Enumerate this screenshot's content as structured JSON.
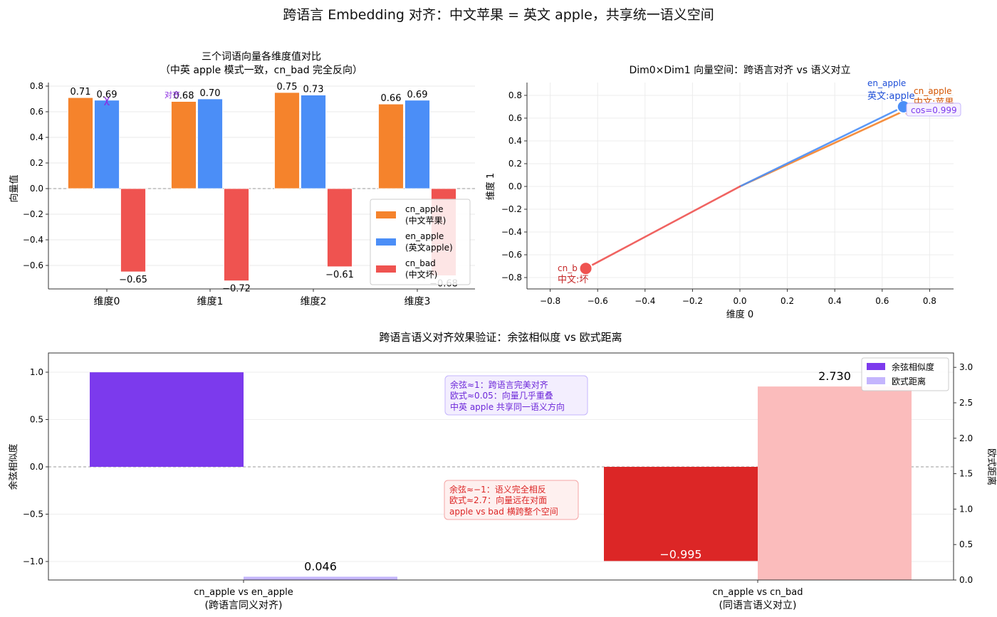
{
  "title": "跨语言 Embedding 对齐：中文苹果 = 英文 apple，共享统一语义空间",
  "colors": {
    "cn_apple": "#f5832c",
    "en_apple": "#4b8ef7",
    "cn_bad": "#ef5350",
    "cosine": "#7c3aed",
    "euclid": "#c4b5fd",
    "cos_bad": "#dc2626",
    "euclid_bad": "#fbbcbc"
  },
  "chart_data": [
    {
      "type": "bar",
      "title_line1": "三个词语向量各维度值对比",
      "title_line2": "（中英 apple 模式一致，cn_bad 完全反向）",
      "ylabel": "向量值",
      "ylim": [
        -0.8,
        0.82
      ],
      "yticks": [
        "0.8",
        "0.6",
        "0.4",
        "0.2",
        "0.0",
        "−0.2",
        "−0.4",
        "−0.6"
      ],
      "categories": [
        "维度0",
        "维度1",
        "维度2",
        "维度3"
      ],
      "series": [
        {
          "name": "cn_apple",
          "legend_line1": "cn_apple",
          "legend_line2": "(中文苹果)",
          "values": [
            0.71,
            0.68,
            0.75,
            0.66
          ],
          "labels": [
            "0.71",
            "0.68",
            "0.75",
            "0.66"
          ]
        },
        {
          "name": "en_apple",
          "legend_line1": "en_apple",
          "legend_line2": "(英文apple)",
          "values": [
            0.69,
            0.7,
            0.73,
            0.69
          ],
          "labels": [
            "0.69",
            "0.70",
            "0.73",
            "0.69"
          ]
        },
        {
          "name": "cn_bad",
          "legend_line1": "cn_bad",
          "legend_line2": "(中文坏)",
          "values": [
            -0.65,
            -0.72,
            -0.61,
            -0.68
          ],
          "labels": [
            "−0.65",
            "−0.72",
            "−0.61",
            "−0.68"
          ]
        }
      ],
      "annotations": {
        "cross_mark": "χ",
        "align_text": "对齐"
      },
      "legend_position": "lower-right"
    },
    {
      "type": "scatter",
      "title": "Dim0×Dim1 向量空间：跨语言对齐 vs 语义对立",
      "xlabel": "维度 0",
      "ylabel": "维度 1",
      "xlim": [
        -0.9,
        0.9
      ],
      "ylim": [
        -0.9,
        0.92
      ],
      "xticks": [
        "−0.8",
        "−0.6",
        "−0.4",
        "−0.2",
        "0.0",
        "0.2",
        "0.4",
        "0.6",
        "0.8"
      ],
      "yticks": [
        "0.8",
        "0.6",
        "0.4",
        "0.2",
        "0.0",
        "−0.2",
        "−0.4",
        "−0.6",
        "−0.8"
      ],
      "points": [
        {
          "name": "cn_apple",
          "label1": "cn_apple",
          "label2": "中文:苹果",
          "x": 0.71,
          "y": 0.68
        },
        {
          "name": "en_apple",
          "label1": "en_apple",
          "label2": "英文:apple",
          "x": 0.69,
          "y": 0.7
        },
        {
          "name": "cn_bad",
          "label1": "cn_b",
          "label2": "中文:坏",
          "x": -0.65,
          "y": -0.72
        }
      ],
      "cos_label": "cos=0.999",
      "grid": true
    },
    {
      "type": "bar",
      "title": "跨语言语义对齐效果验证：余弦相似度 vs 欧式距离",
      "ylabel_left": "余弦相似度",
      "ylabel_right": "欧式距离",
      "ylim_left": [
        -1.2,
        1.2
      ],
      "ylim_right": [
        0,
        3.2
      ],
      "yticks_left": [
        "1.0",
        "0.5",
        "0.0",
        "−0.5",
        "−1.0"
      ],
      "yticks_right": [
        "3.0",
        "2.5",
        "2.0",
        "1.5",
        "1.0",
        "0.5",
        "0.0"
      ],
      "categories_line1": [
        "cn_apple vs en_apple",
        "cn_apple vs cn_bad"
      ],
      "categories_line2": [
        "(跨语言同义对齐)",
        "(同语言语义对立)"
      ],
      "series": [
        {
          "name": "余弦相似度",
          "values": [
            0.999,
            -0.995
          ],
          "labels": [
            "",
            "−0.995"
          ]
        },
        {
          "name": "欧式距离",
          "values": [
            0.046,
            2.73
          ],
          "labels": [
            "0.046",
            "2.730"
          ]
        }
      ],
      "annotation_good": [
        "余弦≈1：跨语言完美对齐",
        "欧式≈0.05：向量几乎重叠",
        "中英 apple 共享同一语义方向"
      ],
      "annotation_bad": [
        "余弦≈−1：语义完全相反",
        "欧式≈2.7：向量远在对面",
        "apple vs bad 横跨整个空间"
      ],
      "legend_position": "upper-right"
    }
  ]
}
